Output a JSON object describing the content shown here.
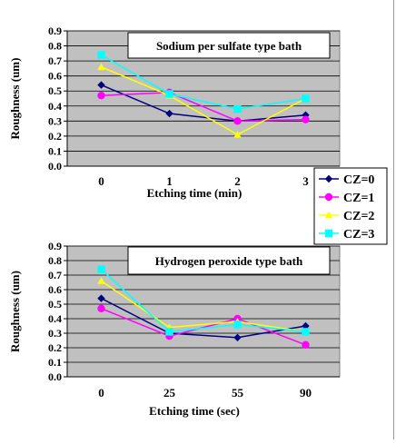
{
  "chart_data": [
    {
      "type": "line",
      "title": "Sodium per sulfate type bath",
      "xlabel": "Etching time (min)",
      "ylabel": "Roughness (um)",
      "categories": [
        "0",
        "1",
        "2",
        "3"
      ],
      "ylim": [
        0,
        0.9
      ],
      "yticks": [
        "0.0",
        "0.1",
        "0.2",
        "0.3",
        "0.4",
        "0.5",
        "0.6",
        "0.7",
        "0.8",
        "0.9"
      ],
      "grid": true,
      "series": [
        {
          "name": "CZ=0",
          "color": "#000080",
          "marker": "diamond",
          "values": [
            0.54,
            0.35,
            0.3,
            0.34
          ]
        },
        {
          "name": "CZ=1",
          "color": "#ff00ff",
          "marker": "circle",
          "values": [
            0.47,
            0.49,
            0.3,
            0.31
          ]
        },
        {
          "name": "CZ=2",
          "color": "#ffff00",
          "marker": "triangle",
          "values": [
            0.66,
            0.47,
            0.21,
            0.45
          ]
        },
        {
          "name": "CZ=3",
          "color": "#00ffff",
          "marker": "square",
          "values": [
            0.74,
            0.48,
            0.38,
            0.45
          ]
        }
      ]
    },
    {
      "type": "line",
      "title": "Hydrogen peroxide type bath",
      "xlabel": "Etching time (sec)",
      "ylabel": "Roughness (um)",
      "categories": [
        "0",
        "25",
        "55",
        "90"
      ],
      "ylim": [
        0,
        0.9
      ],
      "yticks": [
        "0.0",
        "0.1",
        "0.2",
        "0.3",
        "0.4",
        "0.5",
        "0.6",
        "0.7",
        "0.8",
        "0.9"
      ],
      "grid": true,
      "series": [
        {
          "name": "CZ=0",
          "color": "#000080",
          "marker": "diamond",
          "values": [
            0.54,
            0.3,
            0.27,
            0.35
          ]
        },
        {
          "name": "CZ=1",
          "color": "#ff00ff",
          "marker": "circle",
          "values": [
            0.47,
            0.28,
            0.4,
            0.22
          ]
        },
        {
          "name": "CZ=2",
          "color": "#ffff00",
          "marker": "triangle",
          "values": [
            0.66,
            0.34,
            0.38,
            0.31
          ]
        },
        {
          "name": "CZ=3",
          "color": "#00ffff",
          "marker": "square",
          "values": [
            0.74,
            0.31,
            0.36,
            0.31
          ]
        }
      ]
    }
  ],
  "legend": {
    "placement": "right, between charts",
    "entries": [
      {
        "label": "CZ=0",
        "color": "#000080",
        "marker": "diamond"
      },
      {
        "label": "CZ=1",
        "color": "#ff00ff",
        "marker": "circle"
      },
      {
        "label": "CZ=2",
        "color": "#ffff00",
        "marker": "triangle"
      },
      {
        "label": "CZ=3",
        "color": "#00ffff",
        "marker": "square"
      }
    ]
  },
  "colors": {
    "plot_background": "#c0c0c0",
    "gridline": "#000000"
  }
}
